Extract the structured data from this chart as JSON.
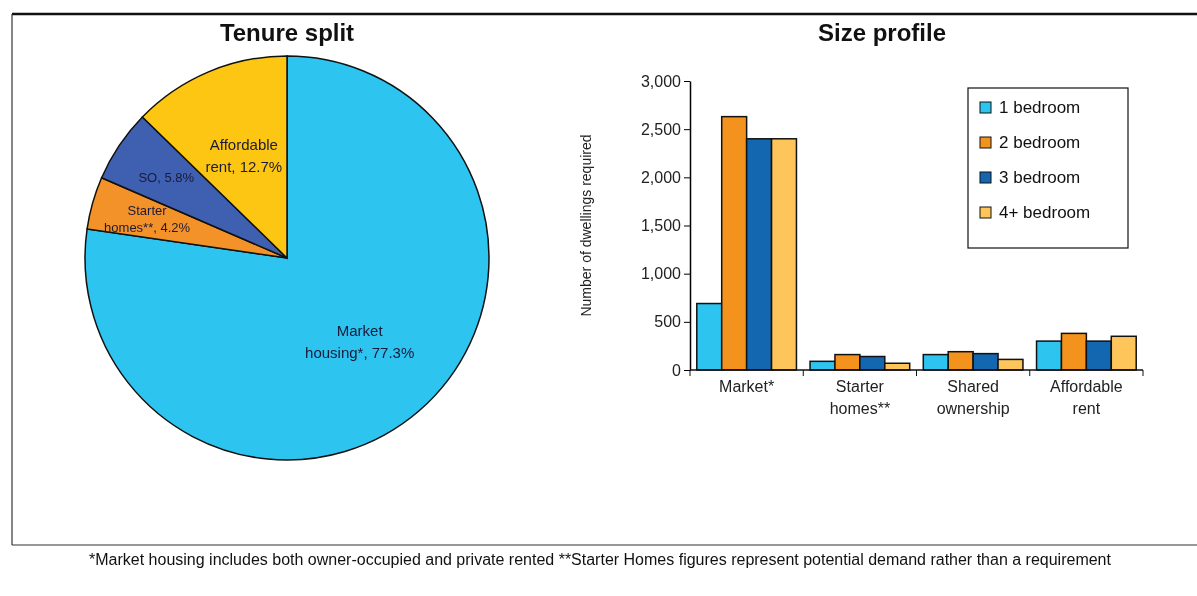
{
  "chart_data": [
    {
      "type": "pie",
      "title": "Tenure split",
      "categories": [
        "Market housing*",
        "Starter homes**",
        "SO",
        "Affordable rent"
      ],
      "values": [
        77.3,
        4.2,
        5.8,
        12.7
      ],
      "colors": [
        "#2ec4f0",
        "#f4922a",
        "#3f5fb0",
        "#fdc613"
      ],
      "value_labels": [
        "77.3%",
        "4.2%",
        "5.8%",
        "12.7%"
      ],
      "annotations": [
        "*Market housing includes both owner-occupied and private rented **Starter Homes figures represent potential demand rather than a requirement"
      ]
    },
    {
      "type": "bar",
      "title": "Size profile",
      "ylabel": "Number of dwellings required",
      "categories": [
        "Market*",
        "Starter homes**",
        "Shared ownership",
        "Affordable rent"
      ],
      "series": [
        {
          "name": "1 bedroom",
          "color": "#2ec4f0",
          "values": [
            690,
            90,
            160,
            300
          ]
        },
        {
          "name": "2 bedroom",
          "color": "#f4921e",
          "values": [
            2630,
            160,
            190,
            380
          ]
        },
        {
          "name": "3 bedroom",
          "color": "#1367b0",
          "values": [
            2400,
            140,
            170,
            300
          ]
        },
        {
          "name": "4+ bedroom",
          "color": "#fec65a",
          "values": [
            2400,
            70,
            110,
            350
          ]
        }
      ],
      "ylim": [
        0,
        3000
      ],
      "yticks": [
        0,
        {
          "value": 500,
          "label": "500"
        },
        {
          "value": 1000,
          "label": "1,000"
        },
        {
          "value": 1500,
          "label": "1,500"
        },
        {
          "value": 2000,
          "label": "2,000"
        },
        {
          "value": 2500,
          "label": "2,500"
        },
        {
          "value": 3000,
          "label": "3,000"
        }
      ],
      "grid": false,
      "legend": "top right"
    }
  ]
}
